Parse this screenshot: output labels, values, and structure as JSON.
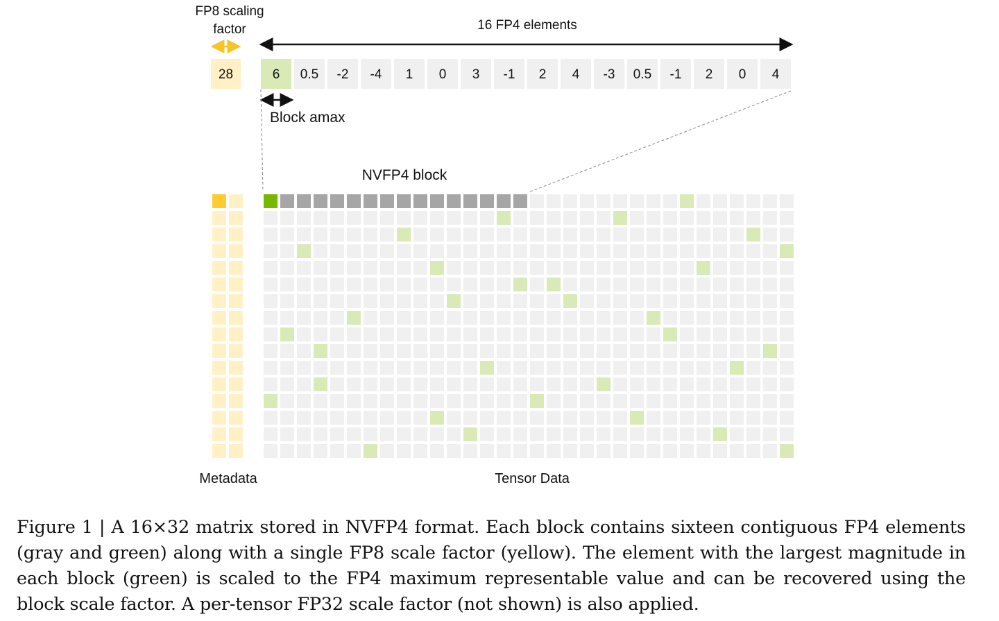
{
  "labels": {
    "scale_title_line1": "FP8 scaling",
    "scale_title_line2": "factor",
    "elements_title": "16 FP4 elements",
    "block_amax": "Block amax",
    "nvfp4_block": "NVFP4 block",
    "metadata": "Metadata",
    "tensor_data": "Tensor Data"
  },
  "scale_value": "28",
  "block_values": [
    "6",
    "0.5",
    "-2",
    "-4",
    "1",
    "0",
    "3",
    "-1",
    "2",
    "4",
    "-3",
    "0.5",
    "-1",
    "2",
    "0",
    "4"
  ],
  "matrix": {
    "rows": 16,
    "cols": 32,
    "block_size": 16,
    "highlighted_block": {
      "row": 0,
      "block": 0
    },
    "amax_columns": [
      [
        0,
        25
      ],
      [
        14,
        21
      ],
      [
        8,
        29
      ],
      [
        2,
        31
      ],
      [
        10,
        26
      ],
      [
        15,
        17
      ],
      [
        11,
        18
      ],
      [
        5,
        23
      ],
      [
        1,
        24
      ],
      [
        3,
        30
      ],
      [
        13,
        28
      ],
      [
        3,
        20
      ],
      [
        0,
        16
      ],
      [
        10,
        22
      ],
      [
        12,
        27
      ],
      [
        6,
        31
      ]
    ]
  },
  "colors": {
    "scale_light": "#fff0c6",
    "scale_dark": "#ffcc2f",
    "amax_light": "#d9eab6",
    "amax_dark": "#76b900",
    "element_light": "#f0f0f0",
    "element_dark": "#a6a6a6",
    "arrow_yellow": "#f7c325"
  },
  "caption": "Figure 1 | A 16×32 matrix stored in NVFP4 format. Each block contains sixteen contiguous FP4 elements (gray and green) along with a single FP8 scale factor (yellow). The element with the largest magnitude in each block (green) is scaled to the FP4 maximum representable value and can be recovered using the block scale factor. A per-tensor FP32 scale factor (not shown) is also applied."
}
